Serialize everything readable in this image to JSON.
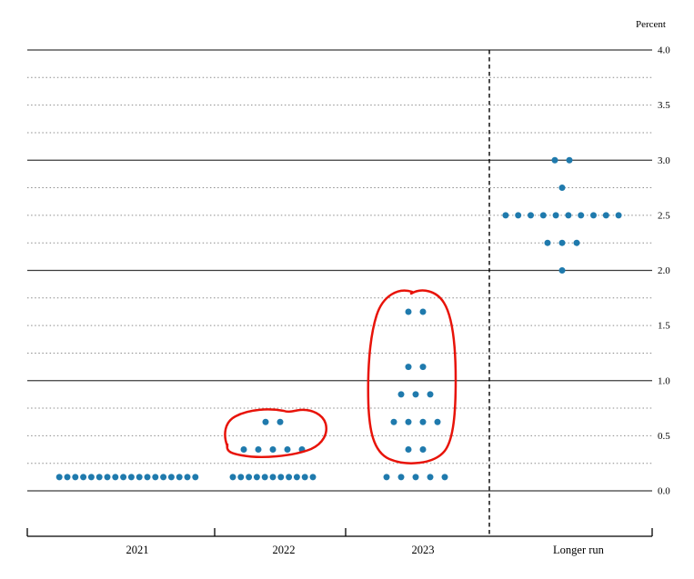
{
  "chart_data": {
    "type": "scatter",
    "chart_kind": "fomc-dot-plot",
    "unit_label": "Percent",
    "categories": [
      "2021",
      "2022",
      "2023",
      "Longer run"
    ],
    "ylim": [
      0.0,
      4.0
    ],
    "ytick_labels": [
      "4.0",
      "3.5",
      "3.0",
      "2.5",
      "2.0",
      "1.5",
      "1.0",
      "0.5",
      "0.0"
    ],
    "grid": {
      "solid_lines_at": [
        0.0,
        1.0,
        2.0,
        3.0,
        4.0
      ],
      "dotted_line_step": 0.25
    },
    "series": [
      {
        "category": "2021",
        "dots": [
          {
            "rate": 0.125,
            "count": 18
          }
        ]
      },
      {
        "category": "2022",
        "dots": [
          {
            "rate": 0.625,
            "count": 2
          },
          {
            "rate": 0.375,
            "count": 5
          },
          {
            "rate": 0.125,
            "count": 11
          }
        ]
      },
      {
        "category": "2023",
        "dots": [
          {
            "rate": 1.625,
            "count": 2
          },
          {
            "rate": 1.125,
            "count": 2
          },
          {
            "rate": 0.875,
            "count": 3
          },
          {
            "rate": 0.625,
            "count": 4
          },
          {
            "rate": 0.375,
            "count": 2
          },
          {
            "rate": 0.125,
            "count": 5
          }
        ]
      },
      {
        "category": "Longer run",
        "dots": [
          {
            "rate": 3.0,
            "count": 2
          },
          {
            "rate": 2.75,
            "count": 1
          },
          {
            "rate": 2.5,
            "count": 10
          },
          {
            "rate": 2.25,
            "count": 3
          },
          {
            "rate": 2.0,
            "count": 1
          }
        ]
      }
    ],
    "separator_after_category": "2023",
    "annotations": [
      {
        "type": "freehand-circle",
        "around_category": "2022",
        "encircled_rates": [
          0.625,
          0.375
        ],
        "color": "#e81309"
      },
      {
        "type": "freehand-circle",
        "around_category": "2023",
        "encircled_rates": [
          1.625,
          1.125,
          0.875,
          0.625,
          0.375
        ],
        "color": "#e81309"
      }
    ],
    "colors": {
      "dot": "#1f7aad",
      "annotation": "#e81309",
      "grid_solid": "#3c3c3c",
      "grid_dotted": "#8c8c8c",
      "axis": "#000000"
    }
  }
}
